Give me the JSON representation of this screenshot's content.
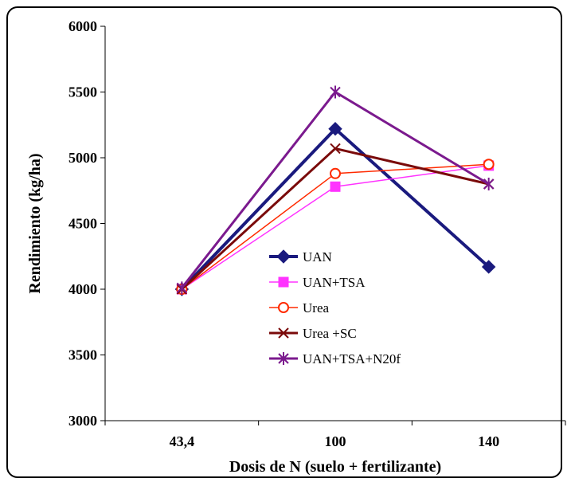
{
  "chart_data": {
    "type": "line",
    "title": "",
    "xlabel": "Dosis de N (suelo + fertilizante)",
    "ylabel": "Rendimiento (kg/ha)",
    "categories": [
      "43,4",
      "100",
      "140"
    ],
    "ylim": [
      3000,
      6000
    ],
    "yticks": [
      "3000",
      "3500",
      "4000",
      "4500",
      "5000",
      "5500",
      "6000"
    ],
    "grid": false,
    "legend_position": "center",
    "series": [
      {
        "name": "UAN",
        "values": [
          4000,
          5220,
          4170
        ],
        "color": "#1a1a7e",
        "marker": "diamond"
      },
      {
        "name": "UAN+TSA",
        "values": [
          4000,
          4780,
          4940
        ],
        "color": "#ff33ff",
        "marker": "square"
      },
      {
        "name": "Urea",
        "values": [
          4000,
          4880,
          4950
        ],
        "color": "#ff2a00",
        "marker": "circle-open"
      },
      {
        "name": "Urea +SC",
        "values": [
          4000,
          5070,
          4800
        ],
        "color": "#7a0a0a",
        "marker": "x"
      },
      {
        "name": "UAN+TSA+N20f",
        "values": [
          4010,
          5500,
          4800
        ],
        "color": "#7b1a8e",
        "marker": "asterisk"
      }
    ]
  }
}
